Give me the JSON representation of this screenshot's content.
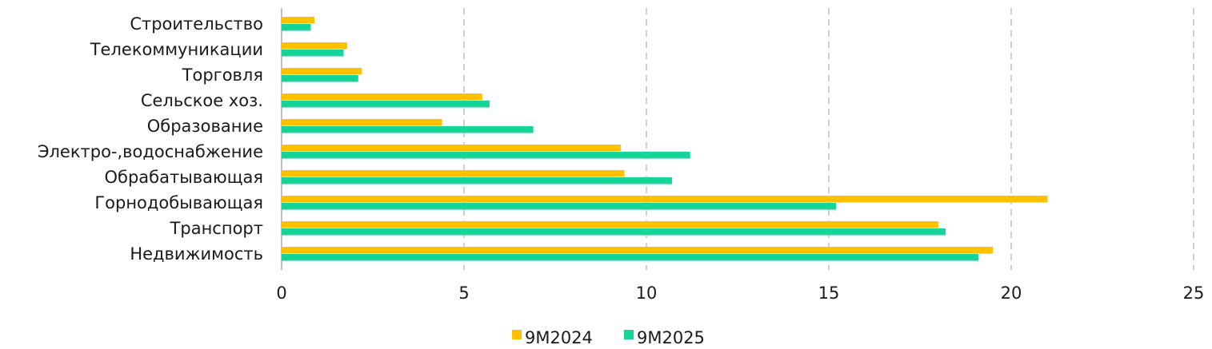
{
  "chart_data": {
    "type": "bar",
    "orientation": "horizontal",
    "categories": [
      "Строительство",
      "Телекоммуникации",
      "Торговля",
      "Сельское хоз.",
      "Образование",
      "Электро-,водоснабжение",
      "Обрабатывающая",
      "Горнодобывающая",
      "Транспорт",
      "Недвижимость"
    ],
    "series": [
      {
        "name": "9M2024",
        "color": "#FFC000",
        "values": [
          0.9,
          1.8,
          2.2,
          5.5,
          4.4,
          9.3,
          9.4,
          21.0,
          18.0,
          19.5
        ]
      },
      {
        "name": "9M2025",
        "color": "#17D49A",
        "values": [
          0.8,
          1.7,
          2.1,
          5.7,
          6.9,
          11.2,
          10.7,
          15.2,
          18.2,
          19.1
        ]
      }
    ],
    "title": "",
    "xlabel": "",
    "ylabel": "",
    "xlim": [
      0,
      25
    ],
    "xticks": [
      "0",
      "5",
      "10",
      "15",
      "20",
      "25"
    ],
    "grid": "vertical dashed",
    "legend": "bottom"
  }
}
